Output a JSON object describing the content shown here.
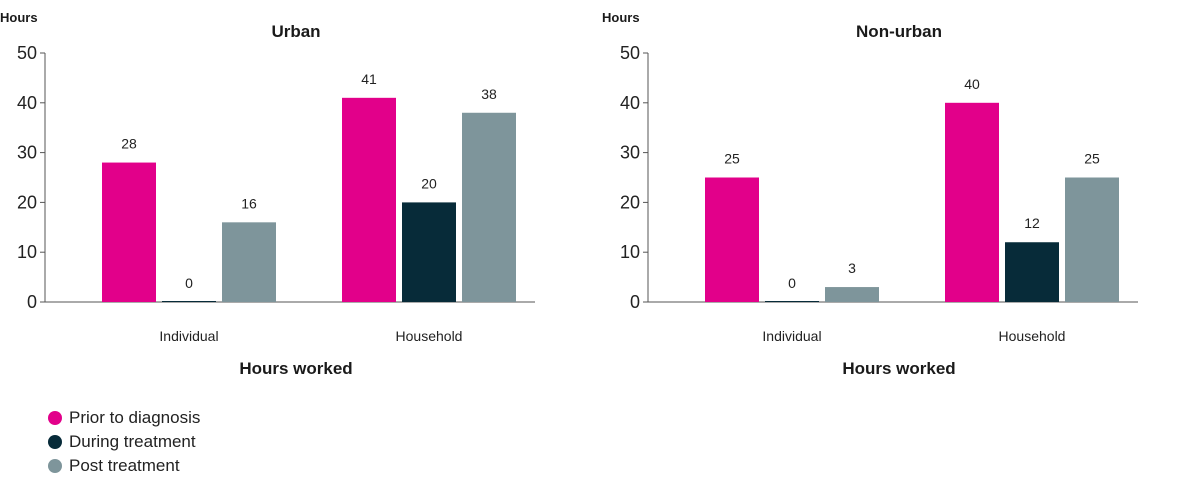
{
  "chart_data": [
    {
      "type": "bar",
      "title": "Urban",
      "ylabel": "Hours",
      "xlabel": "Hours worked",
      "categories": [
        "Individual",
        "Household"
      ],
      "ylim": [
        0,
        50
      ],
      "yticks": [
        0,
        10,
        20,
        30,
        40,
        50
      ],
      "series": [
        {
          "name": "Prior to diagnosis",
          "values": [
            28,
            41
          ]
        },
        {
          "name": "During treatment",
          "values": [
            0,
            20
          ]
        },
        {
          "name": "Post treatment",
          "values": [
            16,
            38
          ]
        }
      ],
      "grid": false
    },
    {
      "type": "bar",
      "title": "Non-urban",
      "ylabel": "Hours",
      "xlabel": "Hours worked",
      "categories": [
        "Individual",
        "Household"
      ],
      "ylim": [
        0,
        50
      ],
      "yticks": [
        0,
        10,
        20,
        30,
        40,
        50
      ],
      "series": [
        {
          "name": "Prior to diagnosis",
          "values": [
            25,
            40
          ]
        },
        {
          "name": "During treatment",
          "values": [
            0,
            12
          ]
        },
        {
          "name": "Post treatment",
          "values": [
            3,
            25
          ]
        }
      ],
      "grid": false
    }
  ],
  "colors": {
    "Prior to diagnosis": "#e2008a",
    "During treatment": "#072b39",
    "Post treatment": "#7e959b"
  },
  "legend": {
    "position": "bottom-left",
    "items": [
      {
        "label": "Prior to diagnosis",
        "color": "#e2008a"
      },
      {
        "label": "During treatment",
        "color": "#072b39"
      },
      {
        "label": "Post treatment",
        "color": "#7e959b"
      }
    ]
  }
}
